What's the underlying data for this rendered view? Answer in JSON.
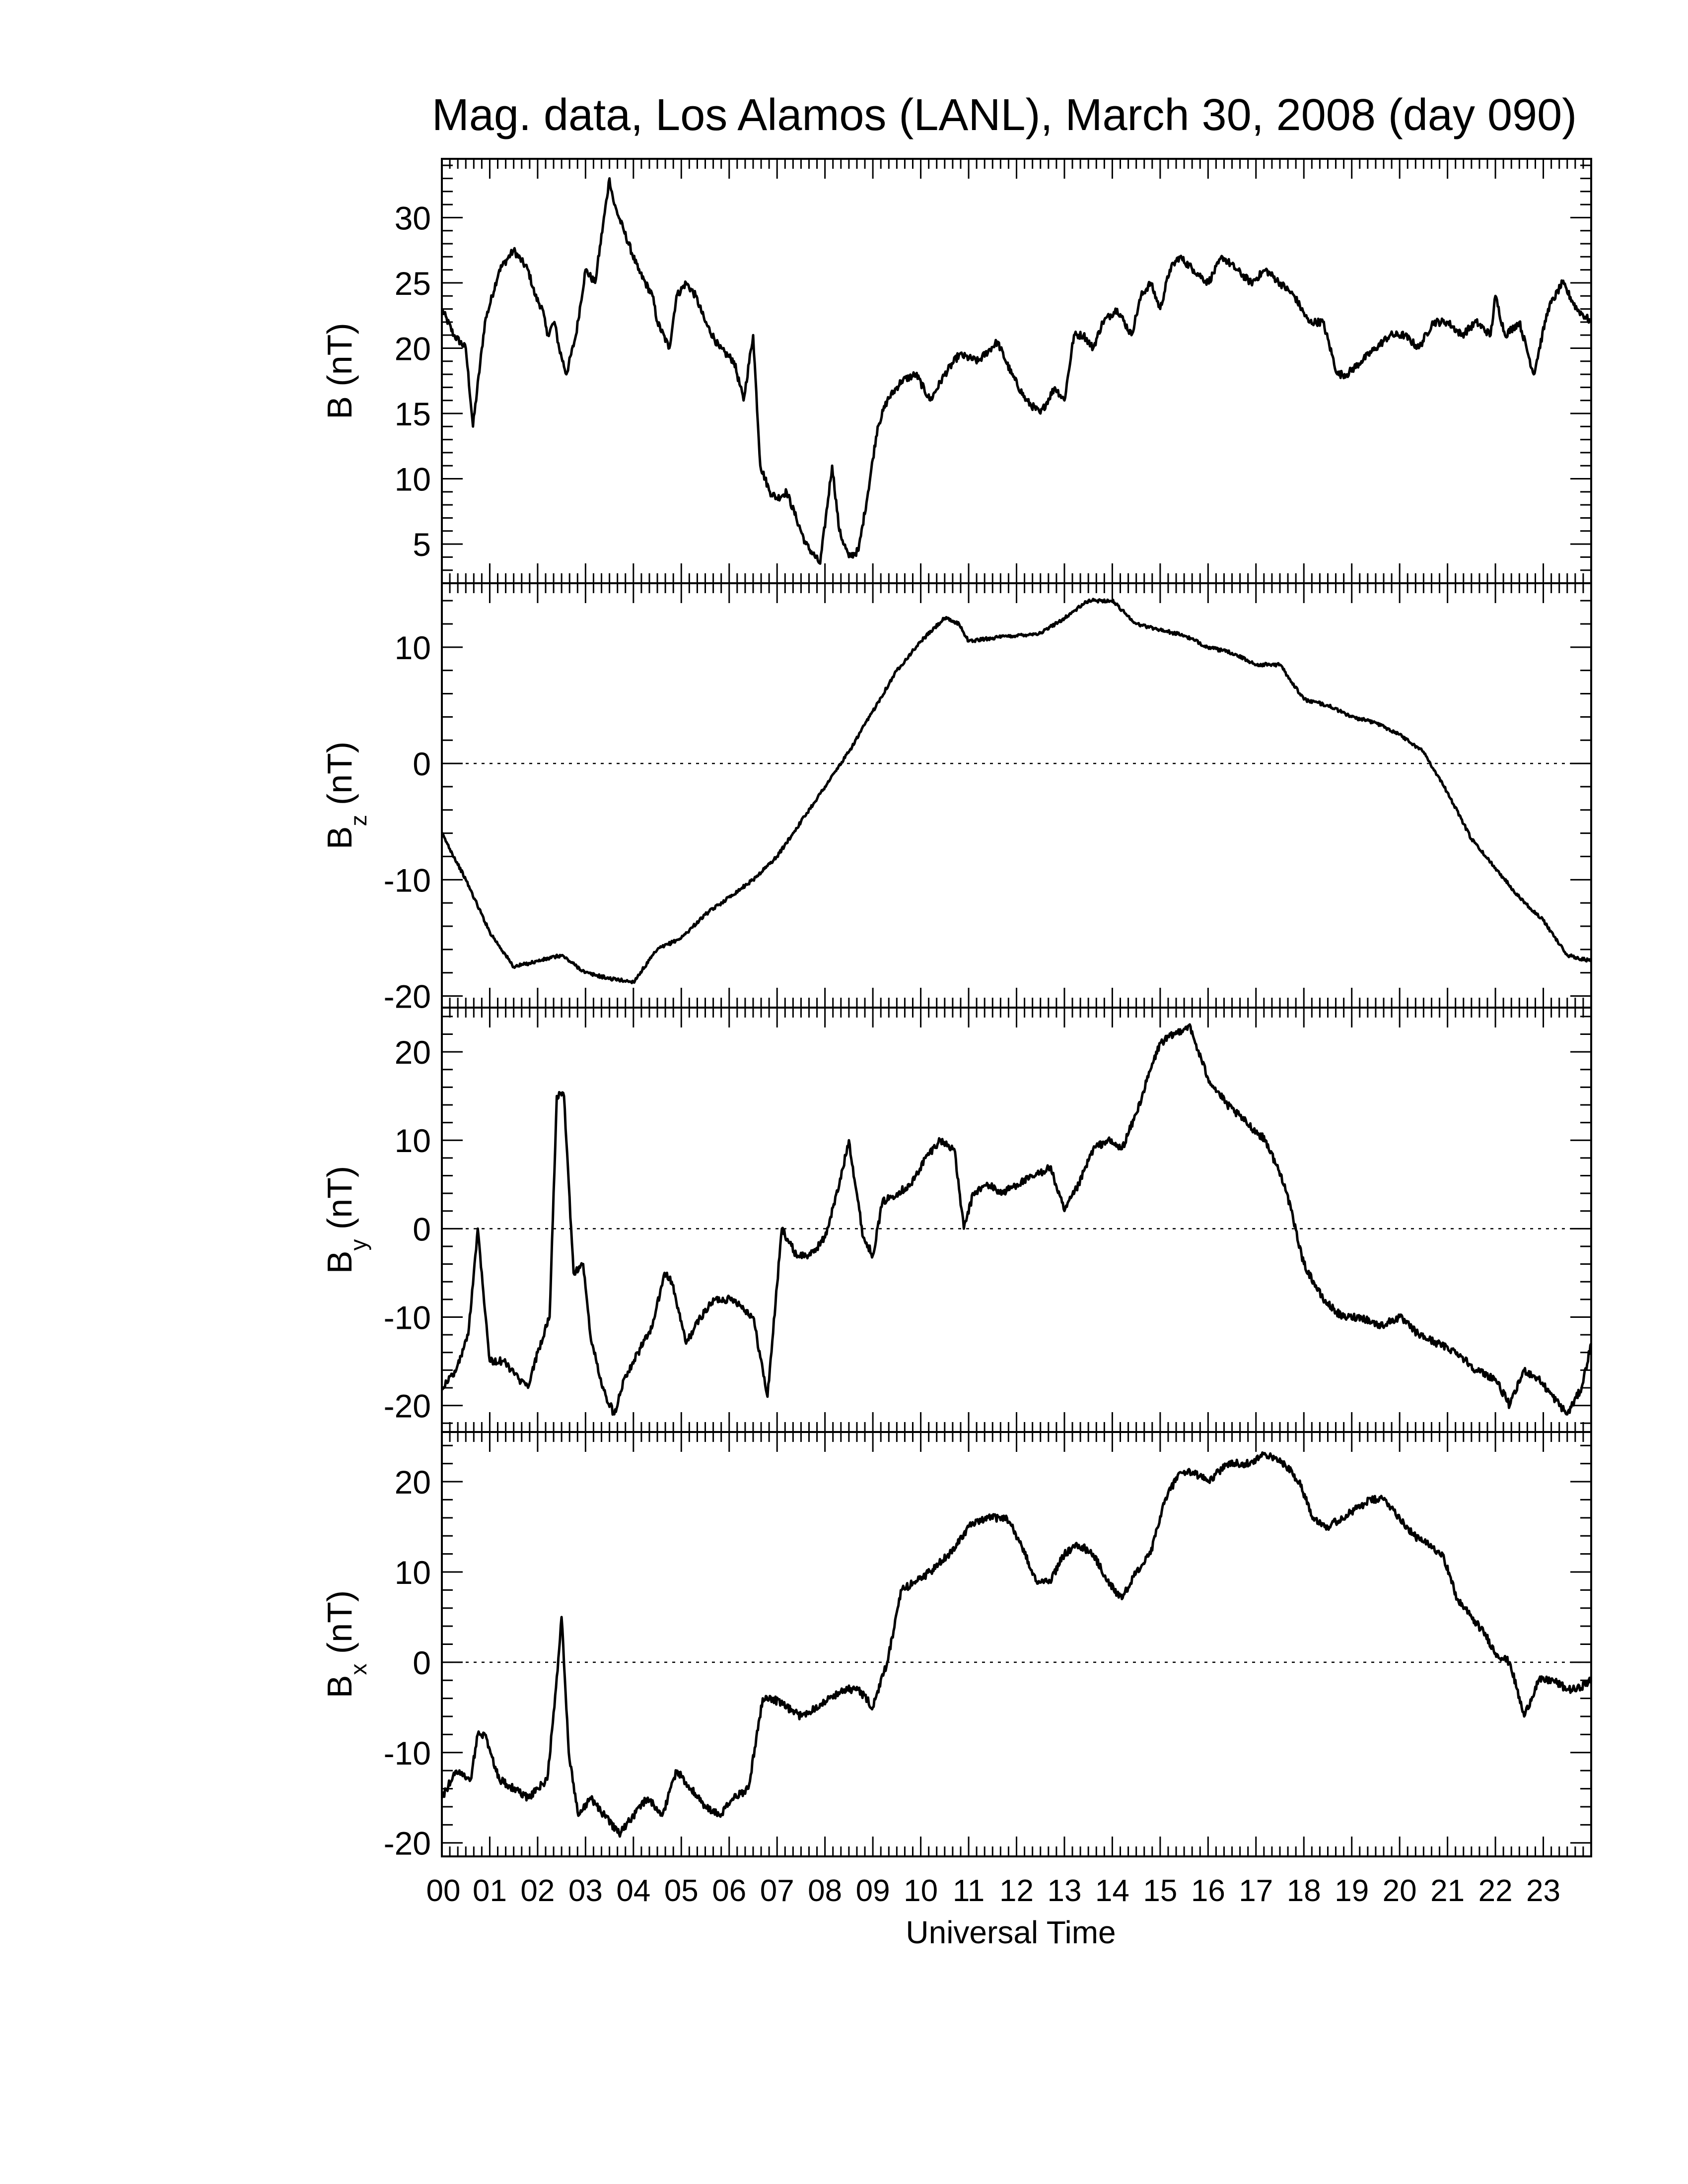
{
  "figure": {
    "title": "Mag. data, Los Alamos (LANL), March 30, 2008 (day 090)",
    "xlabel": "Universal Time"
  },
  "chart_data": [
    {
      "type": "line",
      "panel": "B",
      "ylabel_main": "B",
      "ylabel_sub": "",
      "ylabel_unit": "(nT)",
      "xlim": [
        0,
        24
      ],
      "ylim": [
        2,
        34.5
      ],
      "yticks": [
        5,
        10,
        15,
        20,
        25,
        30
      ],
      "yminor": 1,
      "zero_line": false,
      "x": [
        0,
        0.25,
        0.5,
        0.65,
        0.9,
        1.2,
        1.5,
        1.8,
        1.95,
        2.1,
        2.2,
        2.35,
        2.45,
        2.6,
        2.8,
        3.0,
        3.2,
        3.5,
        3.6,
        3.8,
        4.1,
        4.4,
        4.5,
        4.75,
        4.9,
        5.1,
        5.3,
        5.5,
        5.8,
        6.1,
        6.3,
        6.5,
        6.65,
        6.85,
        7.0,
        7.2,
        7.4,
        7.6,
        7.9,
        8.15,
        8.3,
        8.5,
        8.7,
        8.9,
        9.1,
        9.3,
        9.6,
        9.9,
        10.2,
        10.5,
        10.8,
        11.2,
        11.6,
        11.9,
        12.2,
        12.5,
        12.8,
        13.0,
        13.2,
        13.4,
        13.6,
        13.8,
        14.1,
        14.4,
        14.6,
        14.8,
        15.0,
        15.2,
        15.4,
        15.7,
        16.0,
        16.3,
        16.6,
        16.9,
        17.2,
        17.5,
        17.8,
        18.1,
        18.4,
        18.7,
        18.9,
        19.2,
        19.5,
        19.8,
        20.1,
        20.4,
        20.7,
        21.0,
        21.3,
        21.6,
        21.9,
        22.0,
        22.2,
        22.5,
        22.8,
        23.1,
        23.4,
        23.7,
        24.0
      ],
      "y": [
        23,
        21,
        20,
        14,
        22,
        26,
        27.5,
        26,
        24,
        23,
        21,
        22,
        20,
        18,
        21,
        26,
        25,
        33,
        31,
        29,
        26,
        24,
        22,
        20,
        24,
        25,
        24,
        22,
        20,
        19,
        16,
        21,
        11,
        9,
        8.5,
        9,
        7,
        5,
        3.5,
        11,
        6,
        4,
        4.5,
        9,
        14,
        16,
        17.5,
        18,
        16,
        18,
        19.5,
        19,
        20.5,
        18,
        16,
        15,
        17,
        16,
        21,
        21,
        20,
        22,
        23,
        21,
        24,
        25,
        23,
        26,
        27,
        26,
        25,
        27,
        26,
        25,
        26,
        25,
        24,
        22,
        22,
        18,
        18,
        19,
        20,
        21,
        21,
        20,
        22,
        22,
        21,
        22,
        21,
        24,
        21,
        22,
        18,
        23,
        25,
        23,
        22
      ]
    },
    {
      "type": "line",
      "panel": "Bz",
      "ylabel_main": "B",
      "ylabel_sub": "z",
      "ylabel_unit": "(nT)",
      "xlim": [
        0,
        24
      ],
      "ylim": [
        -21,
        15.5
      ],
      "yticks": [
        -20,
        -10,
        0,
        10
      ],
      "yminor": 2,
      "zero_line": true,
      "x": [
        0,
        0.5,
        1,
        1.5,
        2,
        2.5,
        3,
        3.5,
        4,
        4.5,
        5,
        5.5,
        6,
        6.5,
        7,
        7.5,
        8,
        8.5,
        9,
        9.5,
        10,
        10.5,
        10.8,
        11,
        11.5,
        12,
        12.5,
        13,
        13.5,
        14,
        14.5,
        15,
        15.5,
        16,
        16.5,
        17,
        17.5,
        18,
        18.5,
        19,
        19.5,
        20,
        20.5,
        21,
        21.5,
        22,
        22.5,
        23,
        23.5,
        24
      ],
      "y": [
        -6,
        -10,
        -14.5,
        -17.5,
        -17,
        -16.5,
        -18,
        -18.5,
        -18.8,
        -16,
        -15,
        -13,
        -11.5,
        -10,
        -8,
        -5,
        -2,
        1,
        4.5,
        8,
        10.5,
        12.5,
        12,
        10.5,
        10.8,
        11,
        11.2,
        12.5,
        14,
        14,
        12,
        11.5,
        11,
        10,
        9.5,
        8.5,
        8.5,
        5.5,
        5,
        4,
        3.5,
        2.5,
        1,
        -2.5,
        -6.5,
        -9,
        -11.5,
        -13.5,
        -16.5,
        -17
      ]
    },
    {
      "type": "line",
      "panel": "By",
      "ylabel_main": "B",
      "ylabel_sub": "y",
      "ylabel_unit": "(nT)",
      "xlim": [
        0,
        24
      ],
      "ylim": [
        -23,
        25
      ],
      "yticks": [
        -20,
        -10,
        0,
        10,
        20
      ],
      "yminor": 2,
      "zero_line": true,
      "x": [
        0,
        0.3,
        0.55,
        0.75,
        1.0,
        1.3,
        1.6,
        1.8,
        2.0,
        2.25,
        2.4,
        2.55,
        2.75,
        2.95,
        3.1,
        3.35,
        3.6,
        3.8,
        4.1,
        4.4,
        4.65,
        4.8,
        5.1,
        5.4,
        5.7,
        6.1,
        6.5,
        6.8,
        7.1,
        7.4,
        7.7,
        8.0,
        8.3,
        8.5,
        8.8,
        9.0,
        9.2,
        9.5,
        9.8,
        10.1,
        10.4,
        10.7,
        10.9,
        11.1,
        11.4,
        11.7,
        12.0,
        12.4,
        12.7,
        13.0,
        13.3,
        13.6,
        13.9,
        14.2,
        14.5,
        14.8,
        15.0,
        15.3,
        15.6,
        16.0,
        16.4,
        16.8,
        17.2,
        17.6,
        18.0,
        18.4,
        18.8,
        19.2,
        19.6,
        20.0,
        20.4,
        20.8,
        21.2,
        21.6,
        22.0,
        22.3,
        22.6,
        22.9,
        23.2,
        23.5,
        23.8,
        24.0
      ],
      "y": [
        -18,
        -16,
        -12,
        0,
        -15,
        -15,
        -17,
        -18,
        -14,
        -10,
        15,
        15,
        -5,
        -4,
        -12,
        -18,
        -21,
        -17,
        -14,
        -11,
        -5,
        -6,
        -13,
        -10,
        -8,
        -8,
        -10,
        -19,
        0,
        -3,
        -3,
        -1,
        5,
        10,
        -1,
        -3,
        3,
        4,
        5,
        8,
        10,
        9,
        0,
        4,
        5,
        4,
        5,
        6,
        7,
        2,
        5,
        9,
        10,
        9,
        13,
        18,
        21,
        22,
        23,
        17,
        14,
        12,
        10,
        5,
        -4,
        -8,
        -10,
        -10,
        -11,
        -10,
        -12,
        -13,
        -14,
        -16,
        -17,
        -20,
        -16,
        -17,
        -19,
        -21,
        -18,
        -13
      ]
    },
    {
      "type": "line",
      "panel": "Bx",
      "ylabel_main": "B",
      "ylabel_sub": "x",
      "ylabel_unit": "(nT)",
      "xlim": [
        0,
        24
      ],
      "ylim": [
        -21.5,
        25.5
      ],
      "yticks": [
        -20,
        -10,
        0,
        10,
        20
      ],
      "yminor": 2,
      "zero_line": true,
      "x": [
        0,
        0.3,
        0.6,
        0.75,
        0.9,
        1.2,
        1.5,
        1.8,
        2.0,
        2.2,
        2.35,
        2.5,
        2.65,
        2.85,
        3.1,
        3.4,
        3.7,
        4.0,
        4.3,
        4.6,
        4.9,
        5.2,
        5.5,
        5.8,
        6.1,
        6.4,
        6.7,
        6.9,
        7.2,
        7.5,
        7.8,
        8.1,
        8.4,
        8.7,
        9.0,
        9.3,
        9.6,
        9.9,
        10.2,
        10.6,
        11.0,
        11.4,
        11.8,
        12.1,
        12.4,
        12.7,
        13.0,
        13.3,
        13.6,
        13.9,
        14.2,
        14.5,
        14.8,
        15.1,
        15.4,
        15.7,
        16.0,
        16.4,
        16.8,
        17.2,
        17.6,
        17.9,
        18.2,
        18.5,
        18.8,
        19.1,
        19.4,
        19.7,
        20.0,
        20.3,
        20.6,
        20.9,
        21.2,
        21.5,
        21.8,
        22.0,
        22.3,
        22.6,
        22.9,
        23.2,
        23.5,
        23.7,
        24.0
      ],
      "y": [
        -15,
        -12,
        -13,
        -8,
        -8,
        -13,
        -14,
        -15,
        -14,
        -13,
        -5,
        5,
        -10,
        -17,
        -15,
        -17,
        -19,
        -17,
        -15,
        -17,
        -12,
        -14,
        -16,
        -17,
        -15,
        -14,
        -4,
        -4,
        -5,
        -6,
        -5,
        -4,
        -3,
        -3,
        -5,
        0,
        8,
        9,
        10,
        12,
        15,
        16,
        16,
        13,
        9,
        9,
        12,
        13,
        12,
        9,
        7,
        10,
        12,
        18,
        21,
        21,
        20,
        22,
        22,
        23,
        22,
        20,
        16,
        15,
        16,
        17,
        18,
        18,
        16,
        14,
        13,
        12,
        7,
        5,
        3,
        1,
        0,
        -6,
        -2,
        -2,
        -3,
        -3,
        -2
      ]
    }
  ]
}
